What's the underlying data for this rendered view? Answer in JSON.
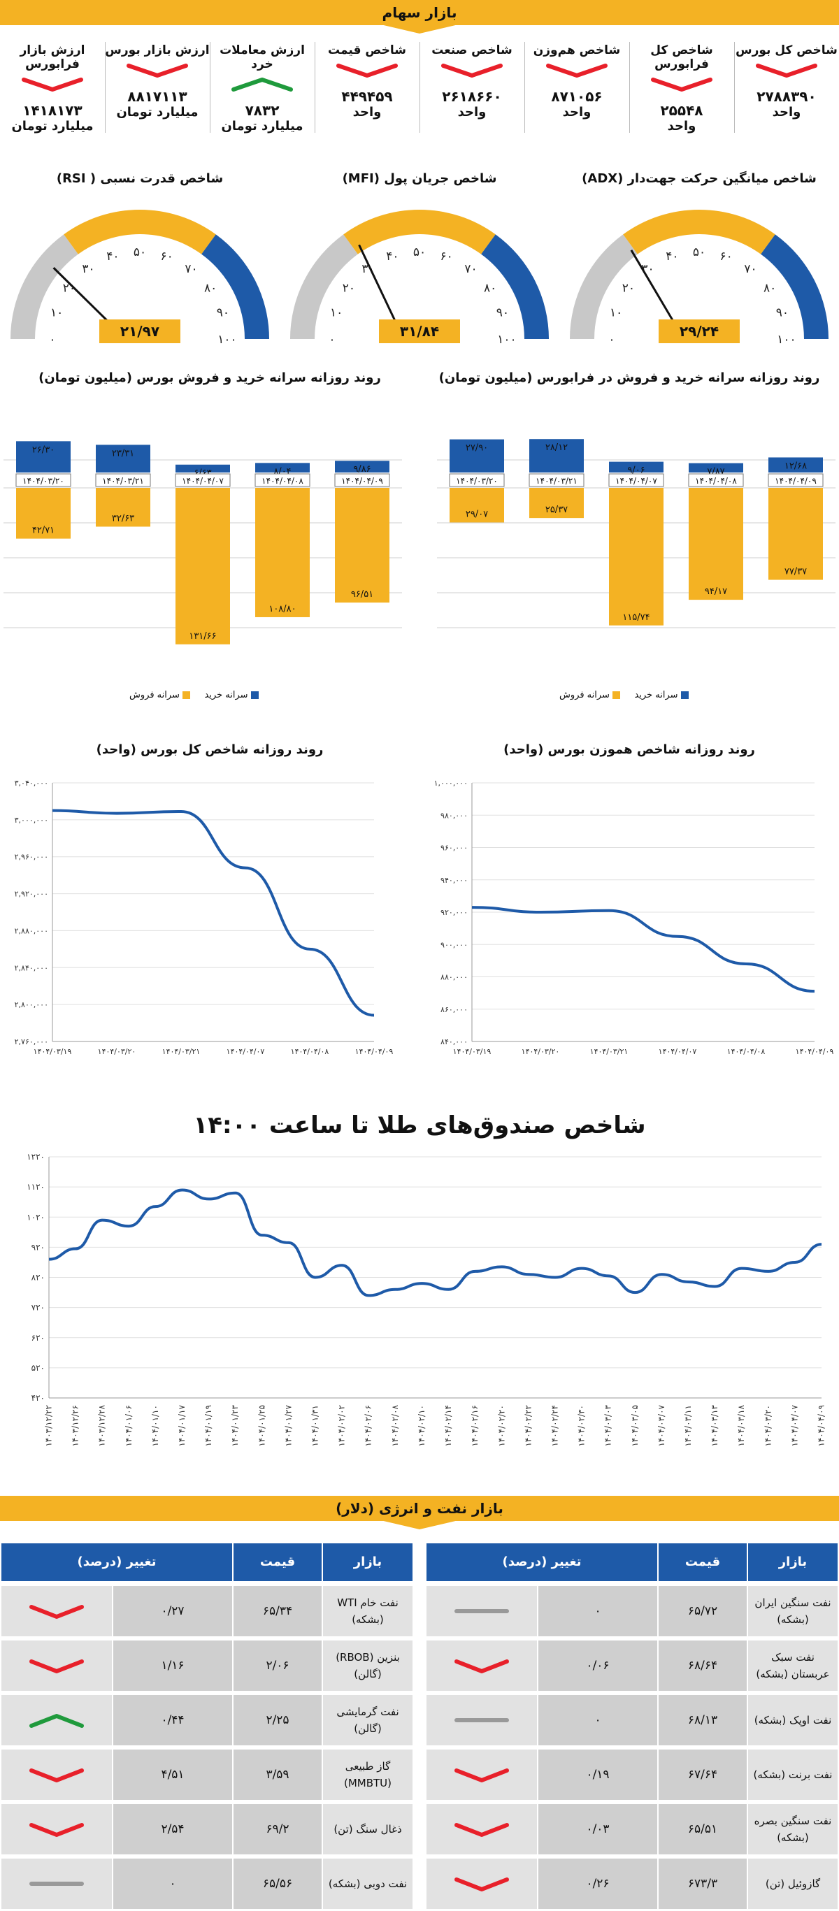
{
  "header": {
    "title": "بازار سهام"
  },
  "indices": [
    {
      "title": "شاخص کل بورس",
      "value": "۲۷۸۸۳۹۰",
      "unit": "واحد",
      "trend": "down"
    },
    {
      "title": "شاخص کل فرابورس",
      "value": "۲۵۵۴۸",
      "unit": "واحد",
      "trend": "down"
    },
    {
      "title": "شاخص هم‌وزن",
      "value": "۸۷۱۰۵۶",
      "unit": "واحد",
      "trend": "down"
    },
    {
      "title": "شاخص صنعت",
      "value": "۲۶۱۸۶۶۰",
      "unit": "واحد",
      "trend": "down"
    },
    {
      "title": "شاخص قیمت",
      "value": "۴۴۹۴۵۹",
      "unit": "واحد",
      "trend": "down"
    },
    {
      "title": "ارزش معاملات خرد",
      "value": "۷۸۳۲",
      "unit": "میلیارد تومان",
      "trend": "up"
    },
    {
      "title": "ارزش بازار بورس",
      "value": "۸۸۱۷۱۱۳",
      "unit": "میلیارد تومان",
      "trend": "down"
    },
    {
      "title": "ارزش بازار فرابورس",
      "value": "۱۴۱۸۱۷۳",
      "unit": "میلیارد تومان",
      "trend": "down"
    }
  ],
  "gauge_ticks": [
    "۰",
    "۱۰",
    "۲۰",
    "۳۰",
    "۴۰",
    "۵۰",
    "۶۰",
    "۷۰",
    "۸۰",
    "۹۰",
    "۱۰۰"
  ],
  "gauges": [
    {
      "title": "شاخص میانگین حرکت جهت‌دار (ADX)",
      "value": 29.24,
      "label": "۲۹/۲۴"
    },
    {
      "title": "شاخص جریان پول (MFI)",
      "value": 31.84,
      "label": "۳۱/۸۴"
    },
    {
      "title": "شاخص قدرت نسبی ( RSI)",
      "value": 21.97,
      "label": "۲۱/۹۷"
    }
  ],
  "colors": {
    "yellow": "#f4b223",
    "blue": "#1e5aa8",
    "gray": "#c8c8c8",
    "red": "#e8202a",
    "green": "#1f9a3c"
  },
  "chart_data": [
    {
      "type": "bar",
      "title": "روند روزانه سرانه خرید و فروش در فرابورس (میلیون تومان)",
      "categories": [
        "۱۴۰۴/۰۴/۰۹",
        "۱۴۰۴/۰۴/۰۸",
        "۱۴۰۴/۰۴/۰۷",
        "۱۴۰۴/۰۳/۲۱",
        "۱۴۰۴/۰۳/۲۰"
      ],
      "series": [
        {
          "name": "سرانه خرید",
          "values": [
            12.68,
            7.87,
            9.06,
            28.12,
            27.9
          ],
          "labels": [
            "۱۲/۶۸",
            "۷/۸۷",
            "۹/۰۶",
            "۲۸/۱۲",
            "۲۷/۹۰"
          ]
        },
        {
          "name": "سرانه فروش",
          "values": [
            77.37,
            94.17,
            115.74,
            25.37,
            29.07
          ],
          "labels": [
            "۷۷/۳۷",
            "۹۴/۱۷",
            "۱۱۵/۷۴",
            "۲۵/۳۷",
            "۲۹/۰۷"
          ]
        }
      ]
    },
    {
      "type": "bar",
      "title": "روند روزانه سرانه خرید و فروش بورس (میلیون تومان)",
      "categories": [
        "۱۴۰۴/۰۴/۰۹",
        "۱۴۰۴/۰۴/۰۸",
        "۱۴۰۴/۰۴/۰۷",
        "۱۴۰۴/۰۳/۲۱",
        "۱۴۰۴/۰۳/۲۰"
      ],
      "series": [
        {
          "name": "سرانه خرید",
          "values": [
            9.86,
            8.04,
            6.63,
            23.31,
            26.3
          ],
          "labels": [
            "۹/۸۶",
            "۸/۰۴",
            "۶/۶۳",
            "۲۳/۳۱",
            "۲۶/۳۰"
          ]
        },
        {
          "name": "سرانه فروش",
          "values": [
            96.51,
            108.8,
            131.66,
            32.63,
            42.71
          ],
          "labels": [
            "۹۶/۵۱",
            "۱۰۸/۸۰",
            "۱۳۱/۶۶",
            "۳۲/۶۳",
            "۴۲/۷۱"
          ]
        }
      ]
    },
    {
      "type": "line",
      "title": "روند روزانه شاخص کل بورس (واحد)",
      "x": [
        "۱۴۰۴/۰۳/۱۹",
        "۱۴۰۴/۰۳/۲۰",
        "۱۴۰۴/۰۳/۲۱",
        "۱۴۰۴/۰۴/۰۷",
        "۱۴۰۴/۰۴/۰۸",
        "۱۴۰۴/۰۴/۰۹"
      ],
      "y": [
        3010000,
        3007000,
        3009000,
        2948000,
        2860000,
        2788390
      ],
      "ylim": [
        2760000,
        3040000
      ],
      "yticks": [
        2760000,
        2800000,
        2840000,
        2880000,
        2920000,
        2960000,
        3000000,
        3040000
      ],
      "ytick_labels": [
        "۲,۷۶۰,۰۰۰",
        "۲,۸۰۰,۰۰۰",
        "۲,۸۴۰,۰۰۰",
        "۲,۸۸۰,۰۰۰",
        "۲,۹۲۰,۰۰۰",
        "۲,۹۶۰,۰۰۰",
        "۳,۰۰۰,۰۰۰",
        "۳,۰۴۰,۰۰۰"
      ]
    },
    {
      "type": "line",
      "title": "روند روزانه شاخص هموزن بورس (واحد)",
      "x": [
        "۱۴۰۴/۰۳/۱۹",
        "۱۴۰۴/۰۳/۲۰",
        "۱۴۰۴/۰۳/۲۱",
        "۱۴۰۴/۰۴/۰۷",
        "۱۴۰۴/۰۴/۰۸",
        "۱۴۰۴/۰۴/۰۹"
      ],
      "y": [
        923000,
        920000,
        921000,
        905000,
        888000,
        871056
      ],
      "ylim": [
        840000,
        1000000
      ],
      "yticks": [
        840000,
        860000,
        880000,
        900000,
        920000,
        940000,
        960000,
        980000,
        1000000
      ],
      "ytick_labels": [
        "۸۴۰,۰۰۰",
        "۸۶۰,۰۰۰",
        "۸۸۰,۰۰۰",
        "۹۰۰,۰۰۰",
        "۹۲۰,۰۰۰",
        "۹۴۰,۰۰۰",
        "۹۶۰,۰۰۰",
        "۹۸۰,۰۰۰",
        "۱,۰۰۰,۰۰۰"
      ]
    },
    {
      "type": "line",
      "title": "شاخص صندوق‌های طلا تا ساعت ۱۴:۰۰",
      "x": [
        "۱۴۰۳/۱۲/۲۲",
        "۱۴۰۳/۱۲/۲۶",
        "۱۴۰۳/۱۲/۲۸",
        "۱۴۰۴/۰۱/۰۶",
        "۱۴۰۴/۰۱/۱۰",
        "۱۴۰۴/۰۱/۱۷",
        "۱۴۰۴/۰۱/۱۹",
        "۱۴۰۴/۰۱/۲۳",
        "۱۴۰۴/۰۱/۲۵",
        "۱۴۰۴/۰۱/۲۷",
        "۱۴۰۴/۰۱/۳۱",
        "۱۴۰۴/۰۲/۰۲",
        "۱۴۰۴/۰۲/۰۶",
        "۱۴۰۴/۰۲/۰۸",
        "۱۴۰۴/۰۲/۱۰",
        "۱۴۰۴/۰۲/۱۴",
        "۱۴۰۴/۰۲/۱۶",
        "۱۴۰۴/۰۲/۲۰",
        "۱۴۰۴/۰۲/۲۲",
        "۱۴۰۴/۰۲/۲۴",
        "۱۴۰۴/۰۲/۳۰",
        "۱۴۰۴/۰۳/۰۳",
        "۱۴۰۴/۰۳/۰۵",
        "۱۴۰۴/۰۳/۰۷",
        "۱۴۰۴/۰۳/۱۱",
        "۱۴۰۴/۰۳/۱۳",
        "۱۴۰۴/۰۳/۱۸",
        "۱۴۰۴/۰۳/۲۰",
        "۱۴۰۴/۰۴/۰۷",
        "۱۴۰۴/۰۴/۰۹"
      ],
      "y": [
        880,
        915,
        1010,
        990,
        1055,
        1110,
        1080,
        1100,
        960,
        935,
        820,
        860,
        760,
        780,
        800,
        780,
        840,
        855,
        830,
        820,
        850,
        825,
        770,
        830,
        805,
        790,
        850,
        840,
        870,
        930
      ],
      "ylim": [
        420,
        1220
      ],
      "yticks": [
        420,
        520,
        620,
        720,
        820,
        920,
        1020,
        1120,
        1220
      ],
      "ytick_labels": [
        "۴۲۰",
        "۵۲۰",
        "۶۲۰",
        "۷۲۰",
        "۸۲۰",
        "۹۲۰",
        "۱۰۲۰",
        "۱۱۲۰",
        "۱۲۲۰"
      ]
    }
  ],
  "energy": {
    "title": "بازار نفت و انرژی (دلار)",
    "headers": {
      "market": "بازار",
      "price": "قیمت",
      "change": "تغییر (درصد)"
    },
    "right": [
      {
        "market": "نفت سنگین ایران (بشکه)",
        "price": "۶۵/۷۲",
        "change": "۰",
        "trend": "flat"
      },
      {
        "market": "نفت سبک عربستان (بشکه)",
        "price": "۶۸/۶۴",
        "change": "۰/۰۶",
        "trend": "down"
      },
      {
        "market": "نفت اوپک (بشکه)",
        "price": "۶۸/۱۳",
        "change": "۰",
        "trend": "flat"
      },
      {
        "market": "نفت برنت (بشکه)",
        "price": "۶۷/۶۴",
        "change": "۰/۱۹",
        "trend": "down"
      },
      {
        "market": "نفت سنگین بصره (بشکه)",
        "price": "۶۵/۵۱",
        "change": "۰/۰۳",
        "trend": "down"
      },
      {
        "market": "گازوئیل (تن)",
        "price": "۶۷۳/۳",
        "change": "۰/۲۶",
        "trend": "down"
      }
    ],
    "left": [
      {
        "market": "نفت خام WTI (بشکه)",
        "price": "۶۵/۳۴",
        "change": "۰/۲۷",
        "trend": "down"
      },
      {
        "market": "بنزین (RBOB) (گالن)",
        "price": "۲/۰۶",
        "change": "۱/۱۶",
        "trend": "down"
      },
      {
        "market": "نفت گرمایشی (گالن)",
        "price": "۲/۲۵",
        "change": "۰/۴۴",
        "trend": "up"
      },
      {
        "market": "گاز طبیعی (MMBTU)",
        "price": "۳/۵۹",
        "change": "۴/۵۱",
        "trend": "down"
      },
      {
        "market": "ذغال سنگ (تن)",
        "price": "۶۹/۲",
        "change": "۲/۵۴",
        "trend": "down"
      },
      {
        "market": "نفت دوبی (بشکه)",
        "price": "۶۵/۵۶",
        "change": "۰",
        "trend": "flat"
      }
    ]
  }
}
